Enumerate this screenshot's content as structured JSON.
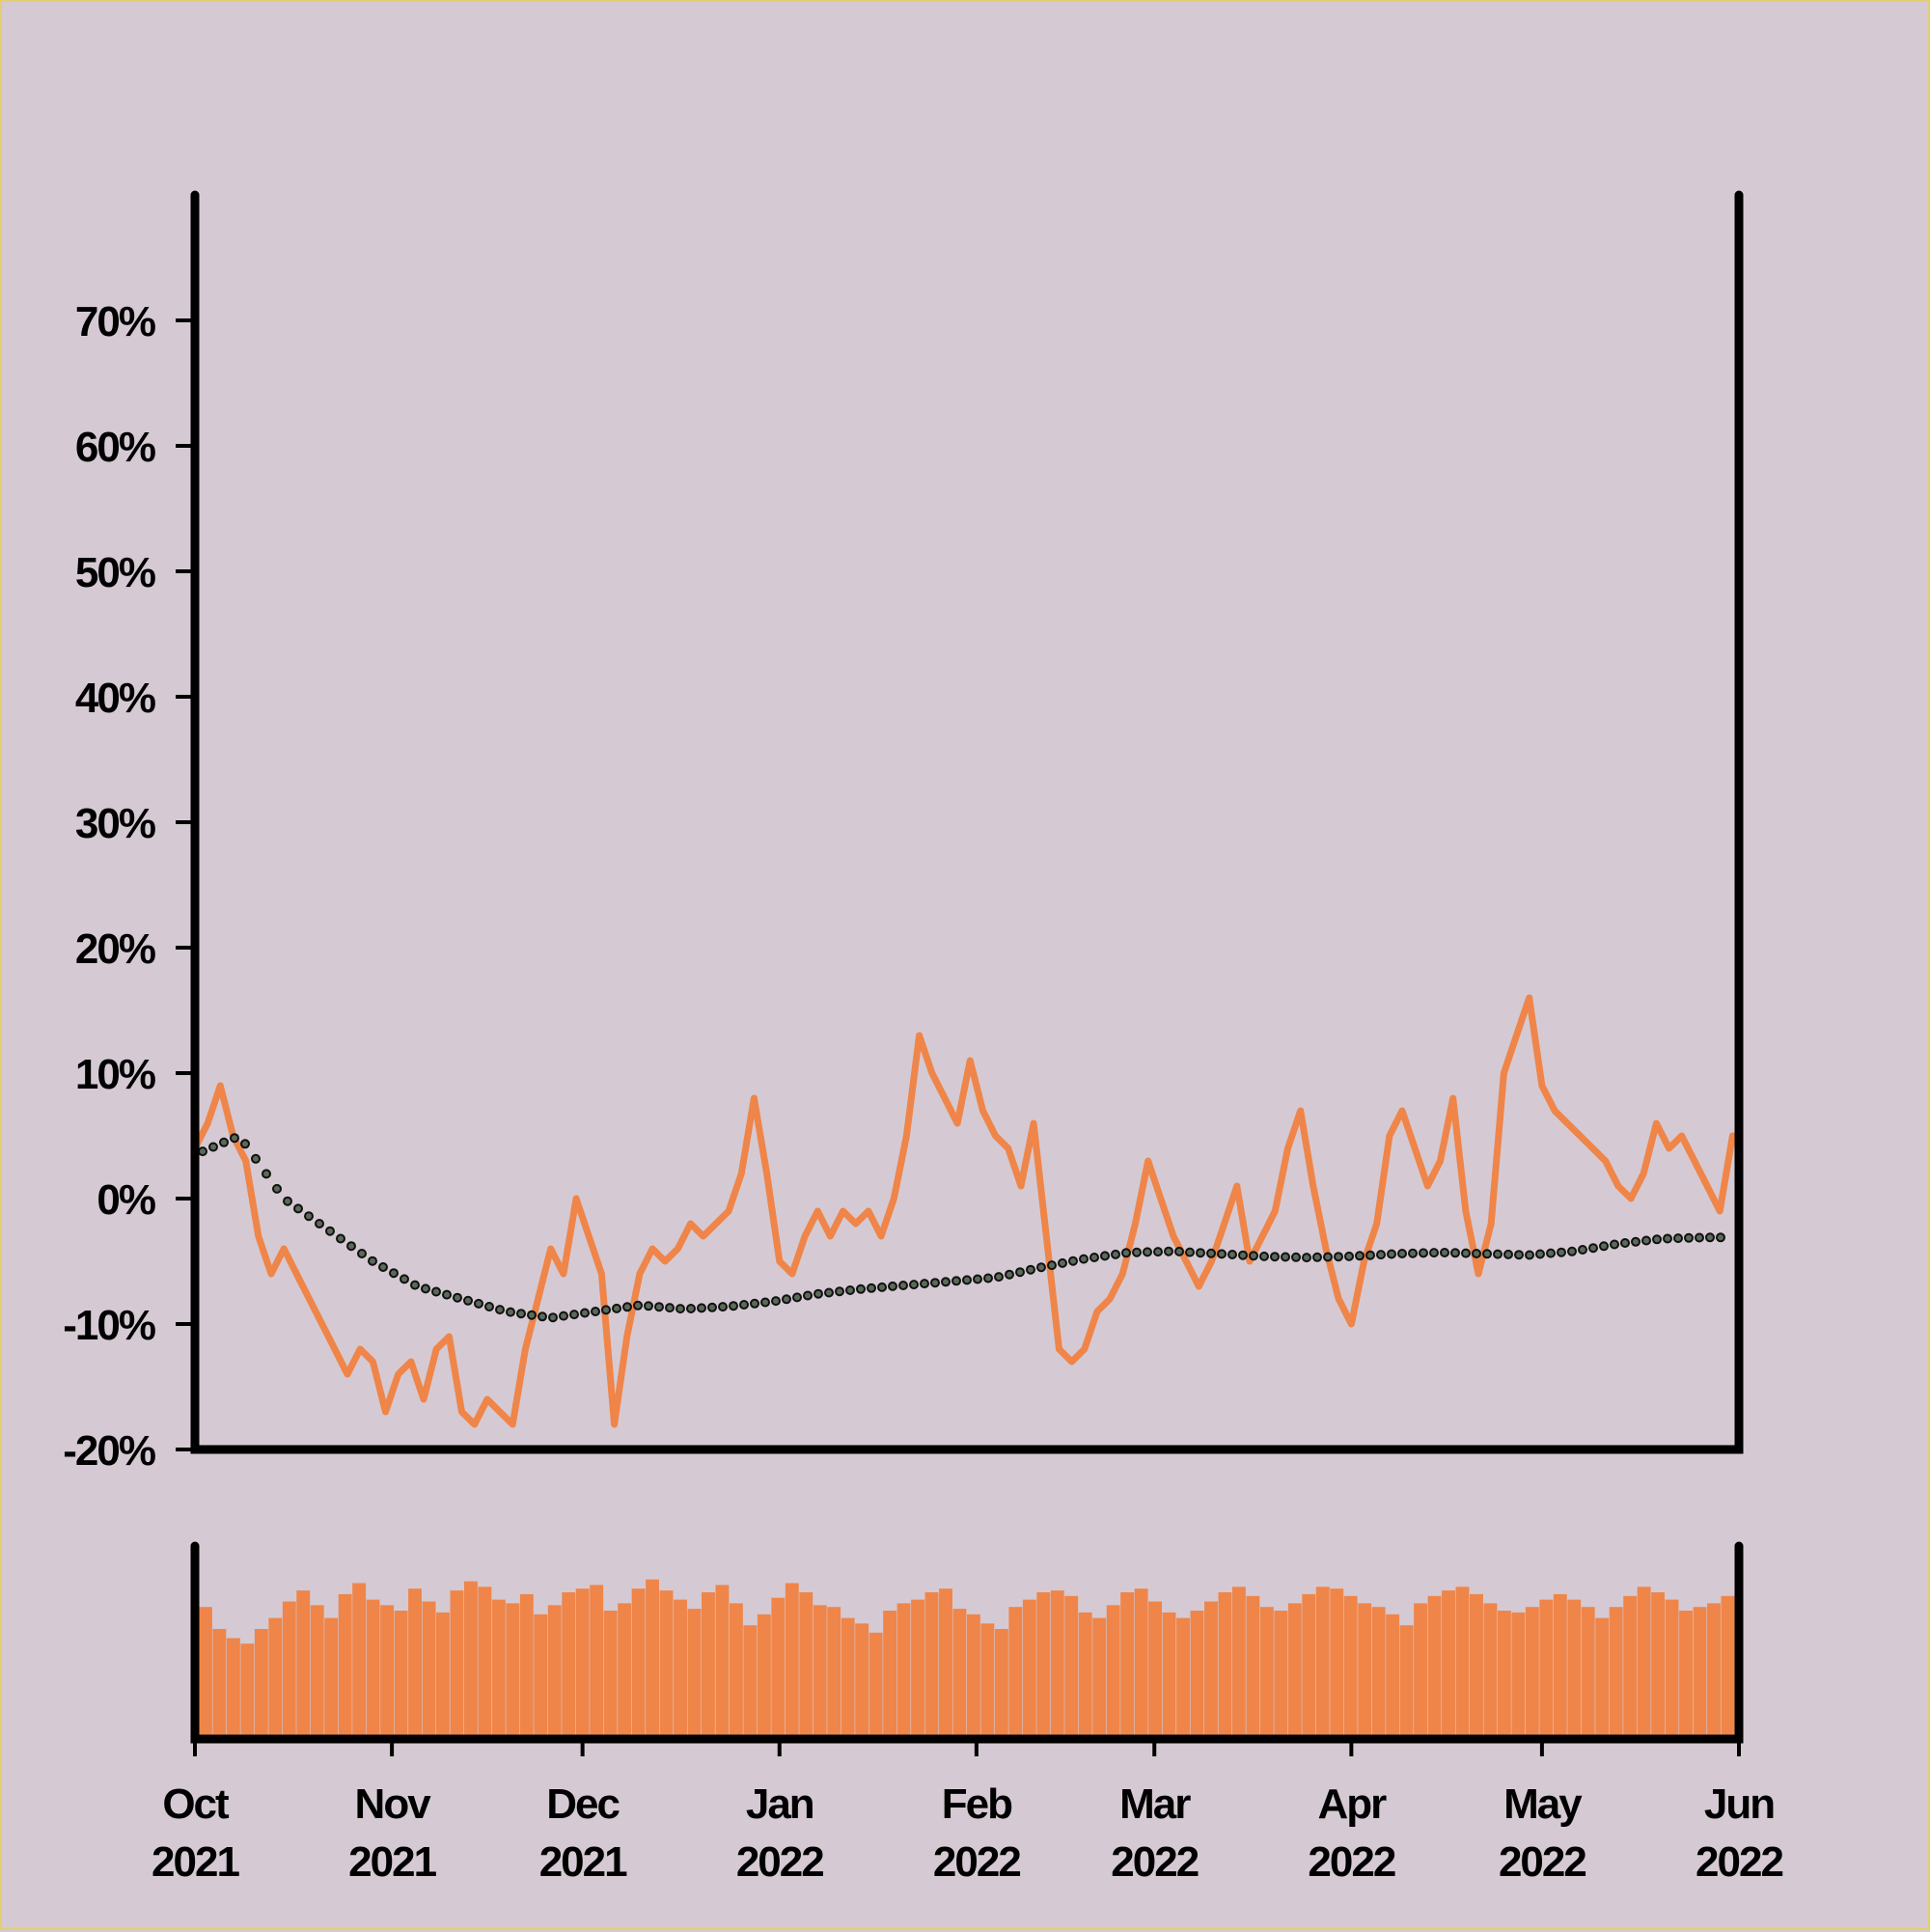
{
  "chart_data": {
    "type": "line",
    "subtype": "price-change line with moving-average overlay and volume bars",
    "title": "",
    "xlabel": "",
    "ylabel": "",
    "ylim": [
      -20,
      80
    ],
    "y_ticks": [
      -20,
      -10,
      0,
      10,
      20,
      30,
      40,
      50,
      60,
      70
    ],
    "y_tick_labels": [
      "-20%",
      "-10%",
      "0%",
      "10%",
      "20%",
      "30%",
      "40%",
      "50%",
      "60%",
      "70%"
    ],
    "x_range": [
      "2021-10-01",
      "2022-06-01"
    ],
    "x_ticks": [
      {
        "date": "2021-10-01",
        "month": "Oct",
        "year": "2021"
      },
      {
        "date": "2021-11-01",
        "month": "Nov",
        "year": "2021"
      },
      {
        "date": "2021-12-01",
        "month": "Dec",
        "year": "2021"
      },
      {
        "date": "2022-01-01",
        "month": "Jan",
        "year": "2022"
      },
      {
        "date": "2022-02-01",
        "month": "Feb",
        "year": "2022"
      },
      {
        "date": "2022-03-01",
        "month": "Mar",
        "year": "2022"
      },
      {
        "date": "2022-04-01",
        "month": "Apr",
        "year": "2022"
      },
      {
        "date": "2022-05-01",
        "month": "May",
        "year": "2022"
      },
      {
        "date": "2022-06-01",
        "month": "Jun",
        "year": "2022"
      }
    ],
    "grid": false,
    "legend": "none",
    "colors": {
      "line": "#ef8549",
      "volume": "#ef8549",
      "ma_dot_fill": "#5b6b5a",
      "axes": "#000000",
      "background": "#d5cad3",
      "frame": "#e3cf6e"
    },
    "series": [
      {
        "role": "change",
        "style": "solid-line",
        "x": [
          "2021-10-01",
          "2021-10-03",
          "2021-10-05",
          "2021-10-07",
          "2021-10-09",
          "2021-10-11",
          "2021-10-13",
          "2021-10-15",
          "2021-10-17",
          "2021-10-19",
          "2021-10-21",
          "2021-10-23",
          "2021-10-25",
          "2021-10-27",
          "2021-10-29",
          "2021-10-31",
          "2021-11-02",
          "2021-11-04",
          "2021-11-06",
          "2021-11-08",
          "2021-11-10",
          "2021-11-12",
          "2021-11-14",
          "2021-11-16",
          "2021-11-18",
          "2021-11-20",
          "2021-11-22",
          "2021-11-24",
          "2021-11-26",
          "2021-11-28",
          "2021-11-30",
          "2021-12-02",
          "2021-12-04",
          "2021-12-06",
          "2021-12-08",
          "2021-12-10",
          "2021-12-12",
          "2021-12-14",
          "2021-12-16",
          "2021-12-18",
          "2021-12-20",
          "2021-12-22",
          "2021-12-24",
          "2021-12-26",
          "2021-12-28",
          "2021-12-30",
          "2022-01-01",
          "2022-01-03",
          "2022-01-05",
          "2022-01-07",
          "2022-01-09",
          "2022-01-11",
          "2022-01-13",
          "2022-01-15",
          "2022-01-17",
          "2022-01-19",
          "2022-01-21",
          "2022-01-23",
          "2022-01-25",
          "2022-01-27",
          "2022-01-29",
          "2022-01-31",
          "2022-02-02",
          "2022-02-04",
          "2022-02-06",
          "2022-02-08",
          "2022-02-10",
          "2022-02-12",
          "2022-02-14",
          "2022-02-16",
          "2022-02-18",
          "2022-02-20",
          "2022-02-22",
          "2022-02-24",
          "2022-02-26",
          "2022-02-28",
          "2022-03-02",
          "2022-03-04",
          "2022-03-06",
          "2022-03-08",
          "2022-03-10",
          "2022-03-12",
          "2022-03-14",
          "2022-03-16",
          "2022-03-18",
          "2022-03-20",
          "2022-03-22",
          "2022-03-24",
          "2022-03-26",
          "2022-03-28",
          "2022-03-30",
          "2022-04-01",
          "2022-04-03",
          "2022-04-05",
          "2022-04-07",
          "2022-04-09",
          "2022-04-11",
          "2022-04-13",
          "2022-04-15",
          "2022-04-17",
          "2022-04-19",
          "2022-04-21",
          "2022-04-23",
          "2022-04-25",
          "2022-04-27",
          "2022-04-29",
          "2022-05-01",
          "2022-05-03",
          "2022-05-05",
          "2022-05-07",
          "2022-05-09",
          "2022-05-11",
          "2022-05-13",
          "2022-05-15",
          "2022-05-17",
          "2022-05-19",
          "2022-05-21",
          "2022-05-23",
          "2022-05-25",
          "2022-05-27",
          "2022-05-29",
          "2022-05-31"
        ],
        "values": [
          4,
          6,
          9,
          5,
          3,
          -3,
          -6,
          -4,
          -6,
          -8,
          -10,
          -12,
          -14,
          -12,
          -13,
          -17,
          -14,
          -13,
          -16,
          -12,
          -11,
          -17,
          -18,
          -16,
          -17,
          -18,
          -12,
          -8,
          -4,
          -6,
          0,
          -3,
          -6,
          -18,
          -11,
          -6,
          -4,
          -5,
          -4,
          -2,
          -3,
          -2,
          -1,
          2,
          8,
          2,
          -5,
          -6,
          -3,
          -1,
          -3,
          -1,
          -2,
          -1,
          -3,
          0,
          5,
          13,
          10,
          8,
          6,
          11,
          7,
          5,
          4,
          1,
          6,
          -3,
          -12,
          -13,
          -12,
          -9,
          -8,
          -6,
          -2,
          3,
          0,
          -3,
          -5,
          -7,
          -5,
          -2,
          1,
          -5,
          -3,
          -1,
          4,
          7,
          1,
          -4,
          -8,
          -10,
          -5,
          -2,
          5,
          7,
          4,
          1,
          3,
          8,
          -1,
          -6,
          -2,
          10,
          13,
          16,
          9,
          7,
          6,
          5,
          4,
          3,
          1,
          0,
          2,
          6,
          4,
          5,
          3,
          1,
          -1,
          5
        ]
      },
      {
        "role": "moving-average",
        "style": "dotted-markers",
        "x": [
          "2021-10-01",
          "2021-10-08",
          "2021-10-15",
          "2021-10-22",
          "2021-10-29",
          "2021-11-05",
          "2021-11-12",
          "2021-11-19",
          "2021-11-26",
          "2021-12-03",
          "2021-12-10",
          "2021-12-17",
          "2021-12-24",
          "2021-12-31",
          "2022-01-07",
          "2022-01-14",
          "2022-01-21",
          "2022-01-28",
          "2022-02-04",
          "2022-02-11",
          "2022-02-18",
          "2022-02-25",
          "2022-03-04",
          "2022-03-11",
          "2022-03-18",
          "2022-03-25",
          "2022-04-01",
          "2022-04-08",
          "2022-04-15",
          "2022-04-22",
          "2022-04-29",
          "2022-05-06",
          "2022-05-13",
          "2022-05-20",
          "2022-05-27",
          "2022-05-31"
        ],
        "values": [
          3.5,
          5,
          0,
          -2.5,
          -5,
          -7,
          -8,
          -9,
          -9.5,
          -9,
          -8.5,
          -8.8,
          -8.6,
          -8.2,
          -7.6,
          -7.2,
          -6.9,
          -6.6,
          -6.3,
          -5.5,
          -4.8,
          -4.3,
          -4.2,
          -4.4,
          -4.6,
          -4.7,
          -4.6,
          -4.4,
          -4.3,
          -4.4,
          -4.5,
          -4.2,
          -3.6,
          -3.2,
          -3.1,
          -3.1
        ]
      }
    ],
    "volume": {
      "role": "volume-bars",
      "x_range": [
        "2021-10-01",
        "2022-06-01"
      ],
      "scale_max": 100,
      "values": [
        72,
        60,
        55,
        52,
        60,
        66,
        75,
        81,
        73,
        66,
        79,
        85,
        76,
        73,
        70,
        82,
        75,
        69,
        81,
        86,
        83,
        76,
        74,
        79,
        68,
        73,
        80,
        82,
        84,
        70,
        74,
        82,
        87,
        81,
        76,
        71,
        80,
        84,
        74,
        62,
        68,
        77,
        85,
        80,
        73,
        72,
        66,
        63,
        58,
        70,
        74,
        76,
        80,
        82,
        71,
        68,
        63,
        60,
        72,
        76,
        80,
        81,
        78,
        69,
        66,
        73,
        80,
        82,
        75,
        69,
        66,
        70,
        75,
        80,
        83,
        78,
        72,
        70,
        74,
        79,
        83,
        82,
        78,
        74,
        72,
        68,
        62,
        74,
        78,
        81,
        83,
        79,
        74,
        70,
        69,
        72,
        76,
        79,
        76,
        72,
        66,
        72,
        78,
        83,
        80,
        76,
        70,
        72,
        74,
        78
      ]
    }
  }
}
